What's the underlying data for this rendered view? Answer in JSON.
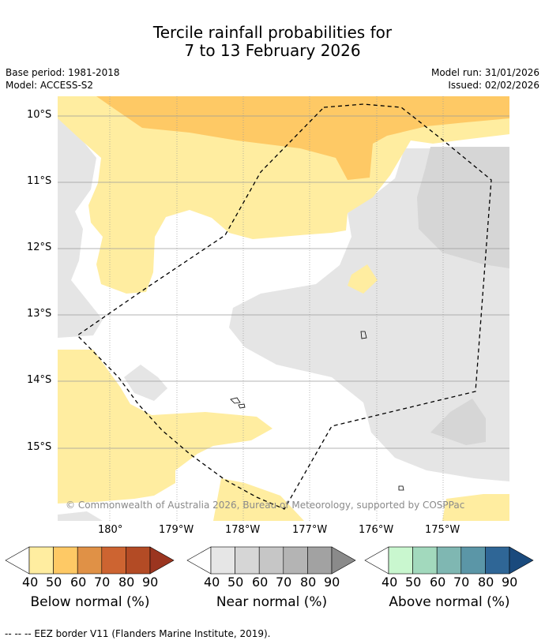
{
  "header": {
    "title_line1": "Tercile rainfall probabilities for",
    "title_line2": "7 to 13 February 2026",
    "base_period": "Base period: 1981-2018",
    "model": "Model: ACCESS-S2",
    "model_run": "Model run: 31/01/2026",
    "issued": "Issued: 02/02/2026"
  },
  "map": {
    "lat_labels": [
      "10°S",
      "11°S",
      "12°S",
      "13°S",
      "14°S",
      "15°S"
    ],
    "lon_labels": [
      "180°",
      "179°W",
      "178°W",
      "177°W",
      "176°W",
      "175°W"
    ],
    "copyright": "© Commonwealth of Australia 2026, Bureau of Meteorology, supported by COSPPac"
  },
  "colorbars": [
    {
      "label": "Below normal (%)",
      "ticks": [
        "40",
        "50",
        "60",
        "70",
        "80",
        "90"
      ],
      "colors": [
        "#ffeda0",
        "#fec965",
        "#e09146",
        "#cd6431",
        "#b34b25",
        "#9b3520"
      ]
    },
    {
      "label": "Near normal (%)",
      "ticks": [
        "40",
        "50",
        "60",
        "70",
        "80",
        "90"
      ],
      "colors": [
        "#e6e6e6",
        "#d6d6d6",
        "#c6c6c6",
        "#b4b4b4",
        "#a2a2a2",
        "#8a8a8a"
      ]
    },
    {
      "label": "Above normal (%)",
      "ticks": [
        "40",
        "50",
        "60",
        "70",
        "80",
        "90"
      ],
      "colors": [
        "#c9f7cf",
        "#a2d9bd",
        "#7fb7b2",
        "#5b96a7",
        "#2f6696",
        "#1a4a7d"
      ]
    }
  ],
  "footnote": "--  --  -- EEZ border V11 (Flanders Marine Institute, 2019)."
}
